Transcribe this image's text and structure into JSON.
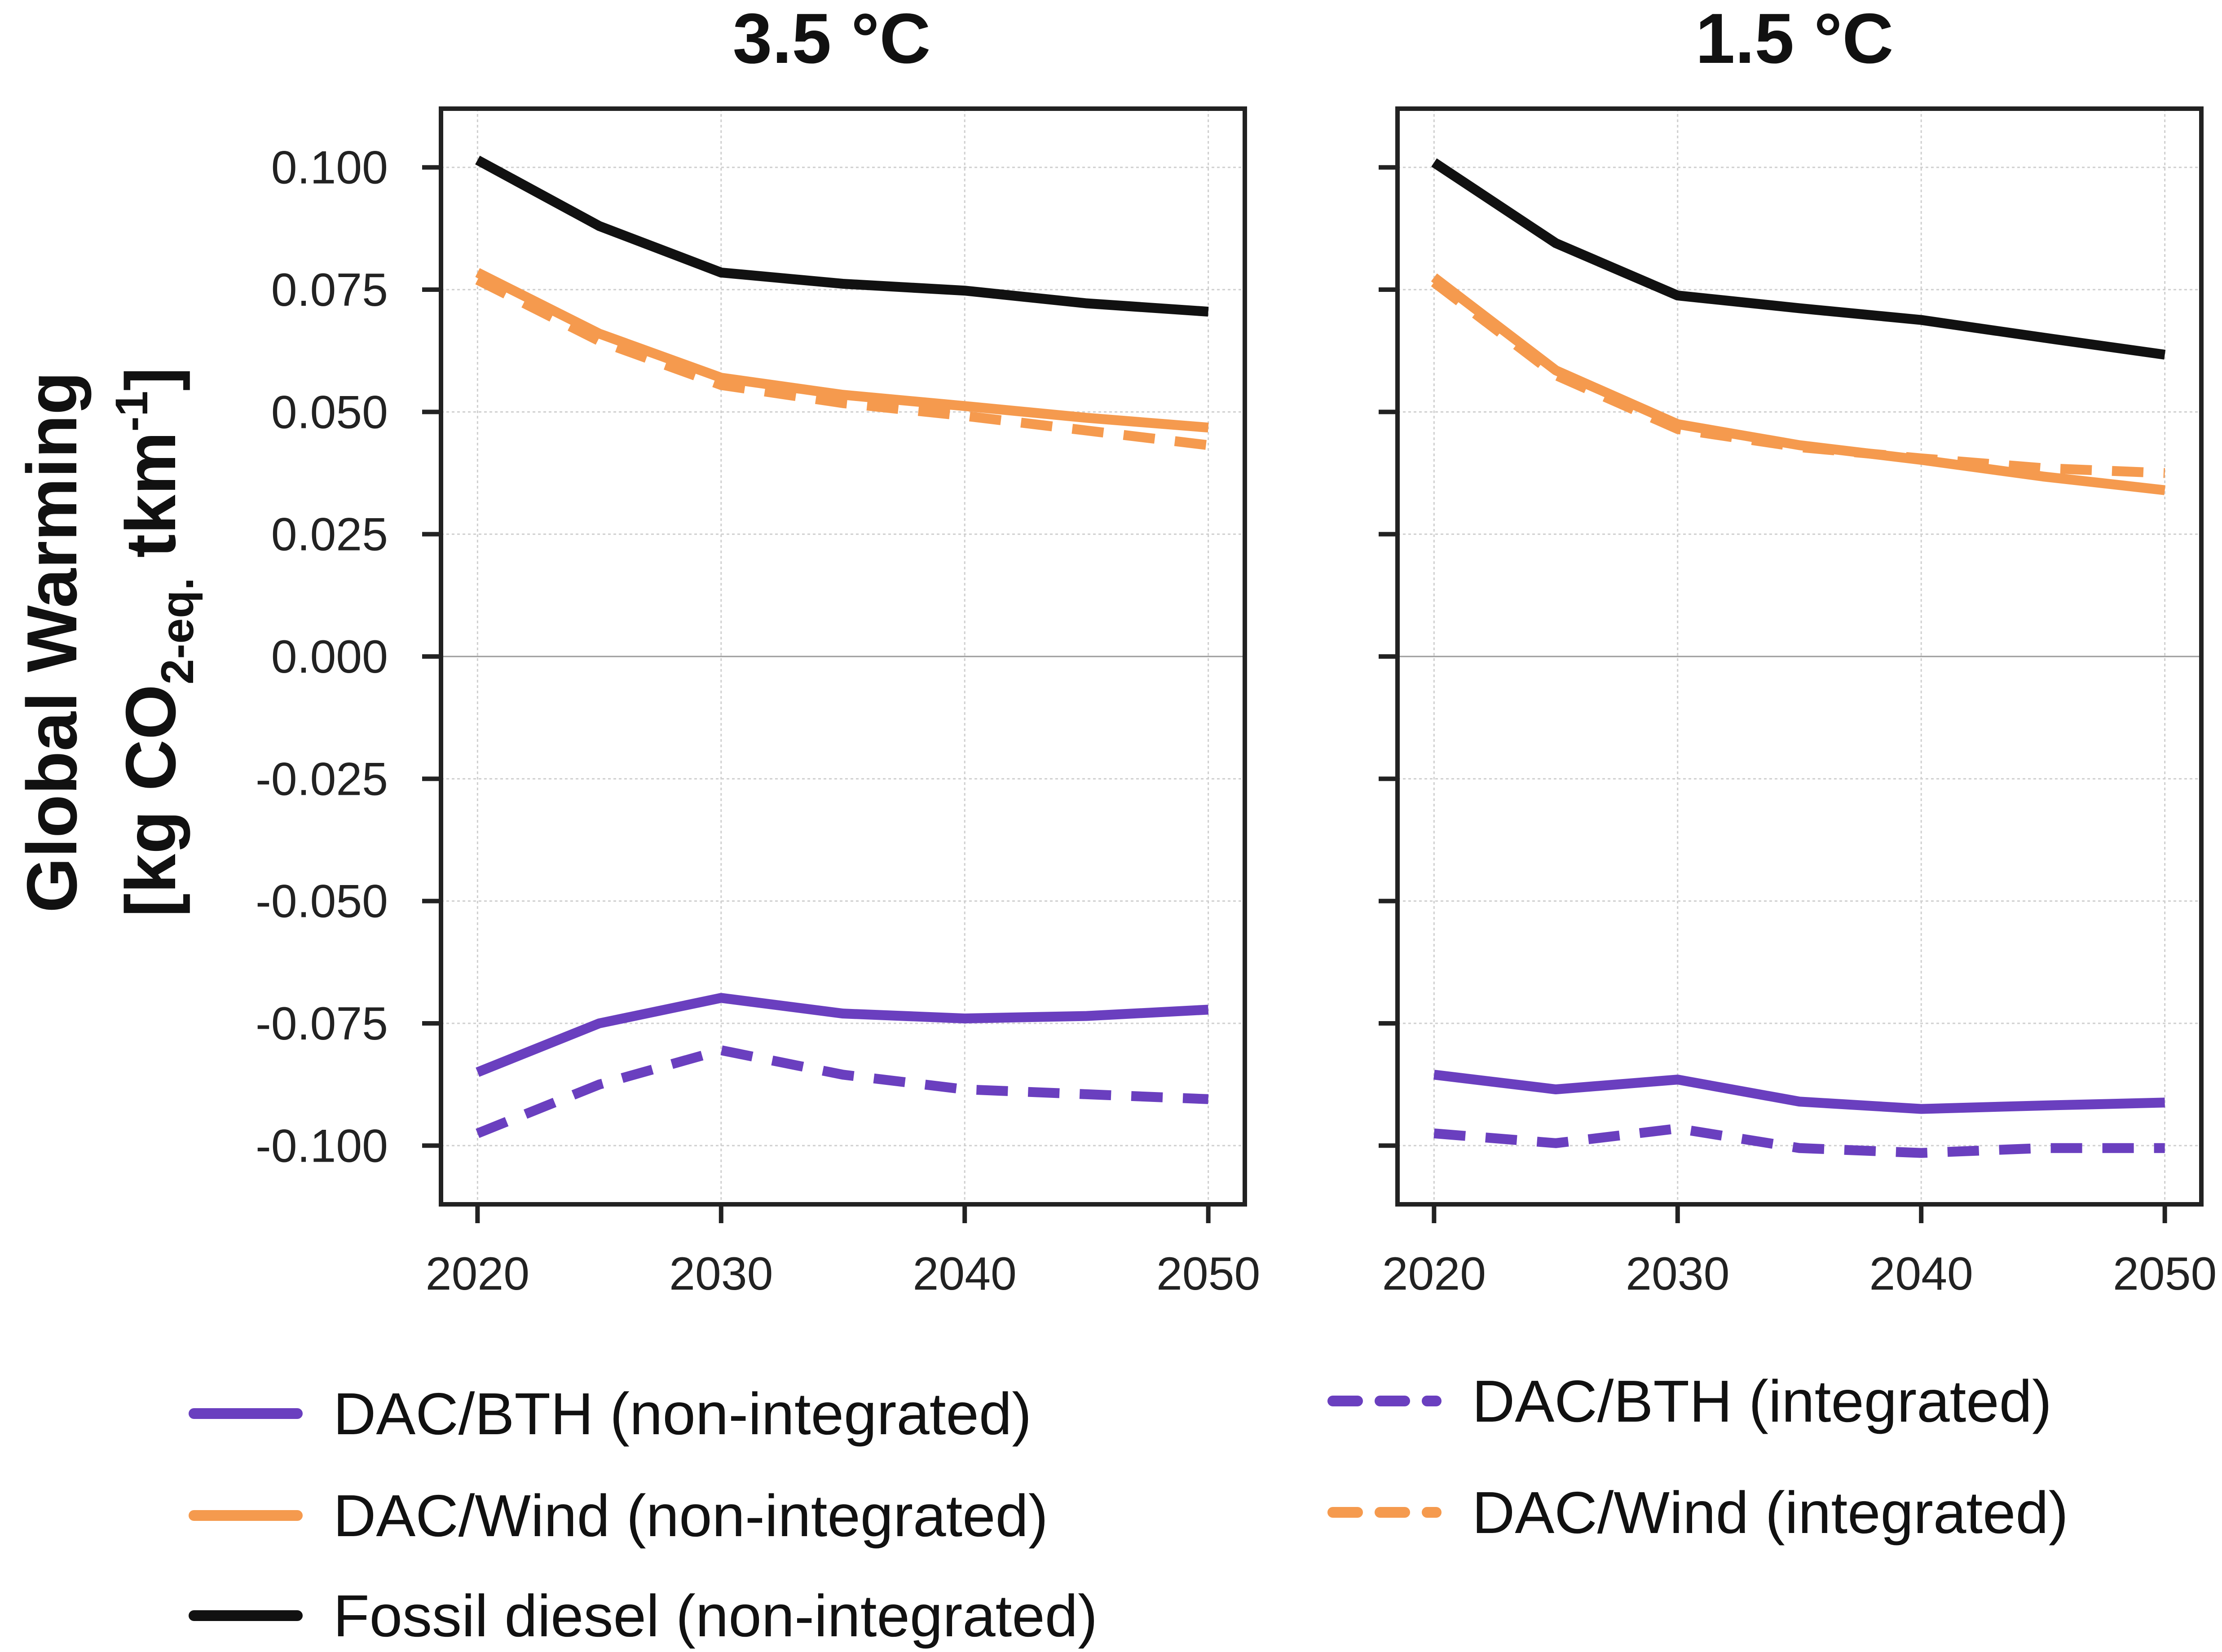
{
  "chart_data": {
    "type": "line",
    "ylabel_line1": "Global Warming",
    "ylabel_line2": "[kg CO",
    "ylabel_sub": "2-eq.",
    "ylabel_after": " tkm",
    "ylabel_sup": "-1",
    "ylabel_close": "]",
    "ylim": [
      -0.112,
      0.112
    ],
    "xlim": [
      2018.5,
      2051.5
    ],
    "x_ticks": [
      2020,
      2030,
      2040,
      2050
    ],
    "y_ticks": [
      0.1,
      0.075,
      0.05,
      0.025,
      0.0,
      -0.025,
      -0.05,
      -0.075,
      -0.1
    ],
    "y_tick_labels": [
      "0.100",
      "0.075",
      "0.050",
      "0.025",
      "0.000",
      "-0.025",
      "-0.050",
      "-0.075",
      "-0.100"
    ],
    "x_grid": [
      2020,
      2030,
      2040,
      2050
    ],
    "y_grid": [
      0.1,
      0.075,
      0.05,
      0.025,
      -0.025,
      -0.05,
      -0.075,
      -0.1
    ],
    "grid": true,
    "legend_position": "bottom",
    "x": [
      2020,
      2025,
      2030,
      2035,
      2040,
      2045,
      2050
    ],
    "series_styles": [
      {
        "color": "#6a3fbf",
        "dashed": false
      },
      {
        "color": "#6a3fbf",
        "dashed": true
      },
      {
        "color": "#f59a4e",
        "dashed": false
      },
      {
        "color": "#f59a4e",
        "dashed": true
      },
      {
        "color": "#111111",
        "dashed": false
      }
    ],
    "panels": [
      {
        "title": "3.5 °C",
        "series": [
          {
            "name": "DAC/BTH (non-integrated)",
            "values": [
              -0.085,
              -0.075,
              -0.0698,
              -0.073,
              -0.074,
              -0.0735,
              -0.0722
            ]
          },
          {
            "name": "DAC/BTH (integrated)",
            "values": [
              -0.0975,
              -0.0875,
              -0.0805,
              -0.0855,
              -0.0885,
              -0.0895,
              -0.0905
            ]
          },
          {
            "name": "DAC/Wind (non-integrated)",
            "values": [
              0.0785,
              0.066,
              0.057,
              0.0535,
              0.0512,
              0.0488,
              0.0468
            ]
          },
          {
            "name": "DAC/Wind (integrated)",
            "values": [
              0.077,
              0.0645,
              0.0555,
              0.0518,
              0.0492,
              0.0462,
              0.0432
            ]
          },
          {
            "name": "Fossil diesel (non-integrated)",
            "values": [
              0.1015,
              0.088,
              0.0785,
              0.0762,
              0.0748,
              0.0722,
              0.0705
            ]
          }
        ]
      },
      {
        "title": "1.5 °C",
        "series": [
          {
            "name": "DAC/BTH (non-integrated)",
            "values": [
              -0.0855,
              -0.0885,
              -0.0865,
              -0.091,
              -0.0925,
              -0.0918,
              -0.0912
            ]
          },
          {
            "name": "DAC/BTH (integrated)",
            "values": [
              -0.0975,
              -0.0995,
              -0.0965,
              -0.1005,
              -0.1015,
              -0.1005,
              -0.1005
            ]
          },
          {
            "name": "DAC/Wind (non-integrated)",
            "values": [
              0.0775,
              0.0585,
              0.0475,
              0.0432,
              0.0402,
              0.0368,
              0.034
            ]
          },
          {
            "name": "DAC/Wind (integrated)",
            "values": [
              0.0765,
              0.0575,
              0.0465,
              0.0428,
              0.0405,
              0.0385,
              0.0375
            ]
          },
          {
            "name": "Fossil diesel (non-integrated)",
            "values": [
              0.101,
              0.0845,
              0.0738,
              0.0712,
              0.0688,
              0.0652,
              0.0617
            ]
          }
        ]
      }
    ],
    "legend": [
      {
        "label": "DAC/BTH (non-integrated)",
        "color": "#6a3fbf",
        "dashed": false
      },
      {
        "label": "DAC/BTH (integrated)",
        "color": "#6a3fbf",
        "dashed": true
      },
      {
        "label": "DAC/Wind (non-integrated)",
        "color": "#f59a4e",
        "dashed": false
      },
      {
        "label": "DAC/Wind (integrated)",
        "color": "#f59a4e",
        "dashed": true
      },
      {
        "label": "Fossil diesel (non-integrated)",
        "color": "#111111",
        "dashed": false
      }
    ]
  }
}
